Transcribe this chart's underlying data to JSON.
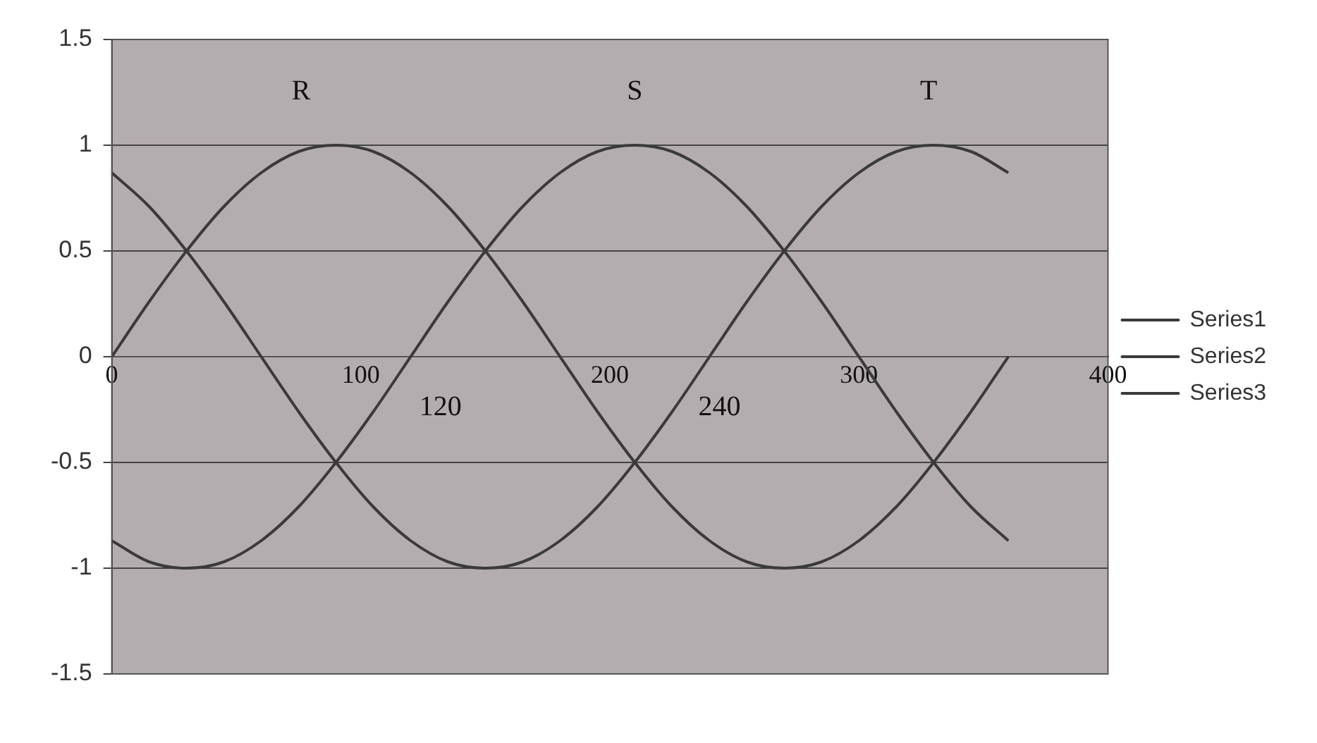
{
  "chart_data": {
    "type": "line",
    "x": [
      0,
      15,
      30,
      45,
      60,
      75,
      90,
      105,
      120,
      135,
      150,
      165,
      180,
      195,
      210,
      225,
      240,
      255,
      270,
      285,
      300,
      315,
      330,
      345,
      360
    ],
    "series": [
      {
        "name": "Series1",
        "color": "#3a3a3a",
        "values": [
          0,
          0.26,
          0.5,
          0.71,
          0.87,
          0.97,
          1,
          0.97,
          0.87,
          0.71,
          0.5,
          0.26,
          0,
          -0.26,
          -0.5,
          -0.71,
          -0.87,
          -0.97,
          -1,
          -0.97,
          -0.87,
          -0.71,
          -0.5,
          -0.26,
          0
        ]
      },
      {
        "name": "Series2",
        "color": "#3a3a3a",
        "values": [
          -0.87,
          -0.97,
          -1,
          -0.97,
          -0.87,
          -0.71,
          -0.5,
          -0.26,
          0,
          0.26,
          0.5,
          0.71,
          0.87,
          0.97,
          1,
          0.97,
          0.87,
          0.71,
          0.5,
          0.26,
          0,
          -0.26,
          -0.5,
          -0.71,
          -0.87
        ]
      },
      {
        "name": "Series3",
        "color": "#3a3a3a",
        "values": [
          0.87,
          0.71,
          0.5,
          0.26,
          0,
          -0.26,
          -0.5,
          -0.71,
          -0.87,
          -0.97,
          -1,
          -0.97,
          -0.87,
          -0.71,
          -0.5,
          -0.26,
          0,
          0.26,
          0.5,
          0.71,
          0.87,
          0.97,
          1,
          0.97,
          0.87
        ]
      }
    ],
    "xlim": [
      0,
      400
    ],
    "xticks": [
      0,
      100,
      200,
      300,
      400
    ],
    "ylim": [
      -1.5,
      1.5
    ],
    "yticks": [
      -1.5,
      -1,
      -0.5,
      0,
      0.5,
      1,
      1.5
    ],
    "grid": "y",
    "legend": "right",
    "marker": "none",
    "line_style": "solid",
    "annotations": [
      "R",
      "S",
      "T",
      "120",
      "240"
    ]
  }
}
